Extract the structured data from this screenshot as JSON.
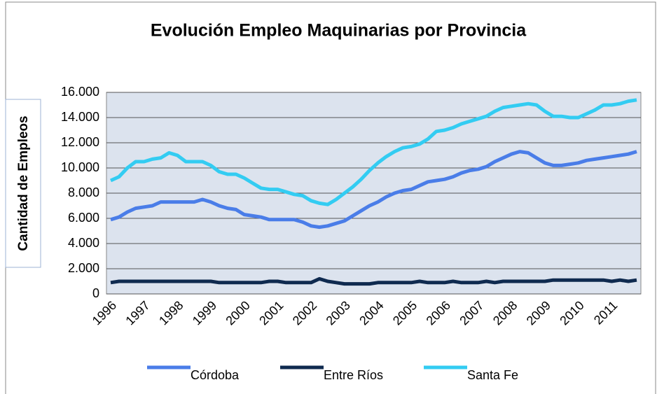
{
  "chart_data": {
    "type": "line",
    "title": "Evolución Empleo Maquinarias por Provincia",
    "y_label": "Cantidad de Empleos",
    "categories": [
      "1996",
      null,
      null,
      null,
      "1997",
      null,
      null,
      null,
      "1998",
      null,
      null,
      null,
      "1999",
      null,
      null,
      null,
      "2000",
      null,
      null,
      null,
      "2001",
      null,
      null,
      null,
      "2002",
      null,
      null,
      null,
      "2003",
      null,
      null,
      null,
      "2004",
      null,
      null,
      null,
      "2005",
      null,
      null,
      null,
      "2006",
      null,
      null,
      null,
      "2007",
      null,
      null,
      null,
      "2008",
      null,
      null,
      null,
      "2009",
      null,
      null,
      null,
      "2010",
      null,
      null,
      null,
      "2011",
      null,
      null,
      null
    ],
    "series": [
      {
        "name": "Córdoba",
        "color": "#4a7de8",
        "values": [
          5900,
          6100,
          6500,
          6800,
          6900,
          7000,
          7300,
          7300,
          7300,
          7300,
          7300,
          7500,
          7300,
          7000,
          6800,
          6700,
          6300,
          6200,
          6100,
          5900,
          5900,
          5900,
          5900,
          5700,
          5400,
          5300,
          5400,
          5600,
          5800,
          6200,
          6600,
          7000,
          7300,
          7700,
          8000,
          8200,
          8300,
          8600,
          8900,
          9000,
          9100,
          9300,
          9600,
          9800,
          9900,
          10100,
          10500,
          10800,
          11100,
          11300,
          11200,
          10800,
          10400,
          10200,
          10200,
          10300,
          10400,
          10600,
          10700,
          10800,
          10900,
          11000,
          11100,
          11300
        ]
      },
      {
        "name": "Entre Ríos",
        "color": "#0f2a4f",
        "values": [
          900,
          1000,
          1000,
          1000,
          1000,
          1000,
          1000,
          1000,
          1000,
          1000,
          1000,
          1000,
          1000,
          900,
          900,
          900,
          900,
          900,
          900,
          1000,
          1000,
          900,
          900,
          900,
          900,
          1200,
          1000,
          900,
          800,
          800,
          800,
          800,
          900,
          900,
          900,
          900,
          900,
          1000,
          900,
          900,
          900,
          1000,
          900,
          900,
          900,
          1000,
          900,
          1000,
          1000,
          1000,
          1000,
          1000,
          1000,
          1100,
          1100,
          1100,
          1100,
          1100,
          1100,
          1100,
          1000,
          1100,
          1000,
          1100
        ]
      },
      {
        "name": "Santa Fe",
        "color": "#33ccf2",
        "values": [
          9000,
          9300,
          10000,
          10500,
          10500,
          10700,
          10800,
          11200,
          11000,
          10500,
          10500,
          10500,
          10200,
          9700,
          9500,
          9500,
          9200,
          8800,
          8400,
          8300,
          8300,
          8100,
          7900,
          7800,
          7400,
          7200,
          7100,
          7500,
          8000,
          8500,
          9100,
          9800,
          10400,
          10900,
          11300,
          11600,
          11700,
          11900,
          12300,
          12900,
          13000,
          13200,
          13500,
          13700,
          13900,
          14100,
          14500,
          14800,
          14900,
          15000,
          15100,
          15000,
          14500,
          14100,
          14100,
          14000,
          14000,
          14300,
          14600,
          15000,
          15000,
          15100,
          15300,
          15400
        ]
      }
    ],
    "ylim": [
      0,
      16000
    ],
    "yticks": [
      0,
      {
        "value": 2000,
        "label": "2.000"
      },
      {
        "value": 4000,
        "label": "4.000"
      },
      {
        "value": 6000,
        "label": "6.000"
      },
      {
        "value": 8000,
        "label": "8.000"
      },
      {
        "value": 10000,
        "label": "10.000"
      },
      {
        "value": 12000,
        "label": "12.000"
      },
      {
        "value": 14000,
        "label": "14.000"
      },
      {
        "value": 16000,
        "label": "16.000"
      }
    ],
    "grid": true,
    "legend": "bottom"
  }
}
